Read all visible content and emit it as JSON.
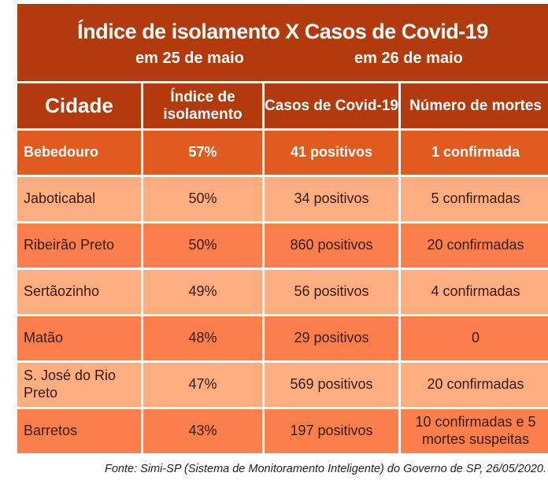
{
  "title": {
    "line1": "Índice de isolamento X Casos de Covid-19",
    "date_left": "em 25 de maio",
    "date_right": "em 26 de maio"
  },
  "headers": [
    "Cidade",
    "Índice de isolamento",
    "Casos de Covid-19",
    "Número de mortes"
  ],
  "rows": [
    {
      "city": "Bebedouro",
      "index": "57%",
      "cases": "41 positivos",
      "deaths": "1 confirmada",
      "style": "highlight"
    },
    {
      "city": "Jaboticabal",
      "index": "50%",
      "cases": "34 positivos",
      "deaths": "5 confirmadas",
      "style": "light"
    },
    {
      "city": "Ribeirão Preto",
      "index": "50%",
      "cases": "860 positivos",
      "deaths": "20 confirmadas",
      "style": "dark"
    },
    {
      "city": "Sertãozinho",
      "index": "49%",
      "cases": "56 positivos",
      "deaths": "4 confirmadas",
      "style": "light"
    },
    {
      "city": "Matão",
      "index": "48%",
      "cases": "29 positivos",
      "deaths": "0",
      "style": "dark"
    },
    {
      "city": "S. José do Rio Preto",
      "index": "47%",
      "cases": "569 positivos",
      "deaths": "20 confirmadas",
      "style": "light"
    },
    {
      "city": "Barretos",
      "index": "43%",
      "cases": "197 positivos",
      "deaths": "10 confirmadas e 5 mortes suspeitas",
      "style": "dark"
    }
  ],
  "source": "Fonte: Simi-SP (Sistema de Monitoramento Inteligente) do Governo de SP, 26/05/2020.",
  "colors": {
    "header": "#b23a0c",
    "highlight": "#e15b1f",
    "dark": "#fb7f4b",
    "light": "#fcae80"
  }
}
